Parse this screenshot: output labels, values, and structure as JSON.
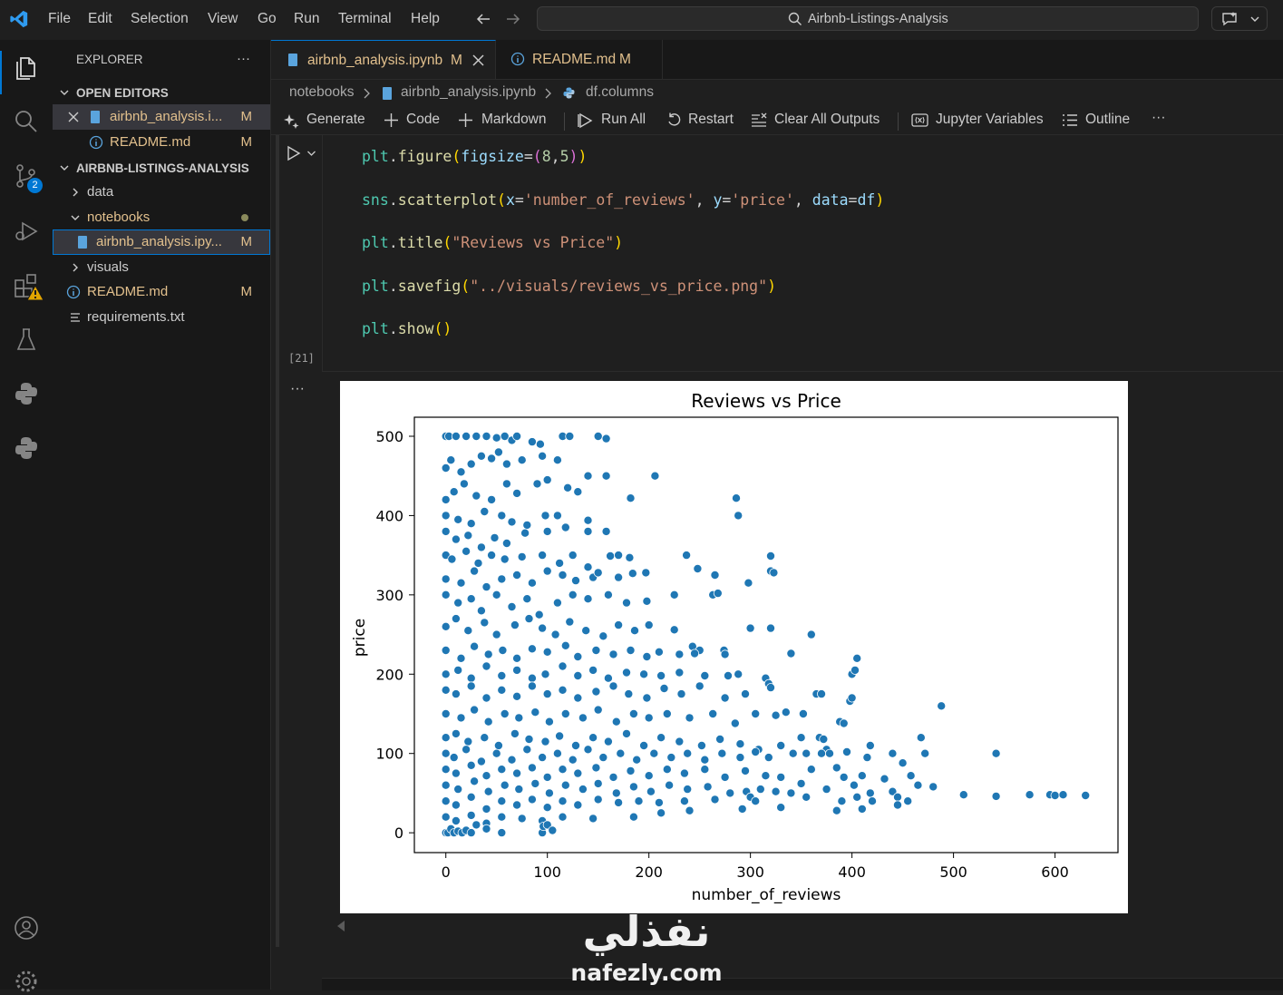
{
  "menu": [
    "File",
    "Edit",
    "Selection",
    "View",
    "Go",
    "Run",
    "Terminal",
    "Help"
  ],
  "command_center": {
    "label": "Airbnb-Listings-Analysis"
  },
  "activity": {
    "scm_badge": "2"
  },
  "sidebar": {
    "title": "EXPLORER",
    "more": "···",
    "open_editors_title": "OPEN EDITORS",
    "open_editors": [
      {
        "label": "airbnb_analysis.i...",
        "badge": "M"
      },
      {
        "label": "README.md",
        "badge": "M"
      }
    ],
    "project_title": "AIRBNB-LISTINGS-ANALYSIS",
    "tree": [
      {
        "label": "data",
        "badge": ""
      },
      {
        "label": "notebooks",
        "badge": ""
      },
      {
        "label": "airbnb_analysis.ipy...",
        "badge": "M"
      },
      {
        "label": "visuals",
        "badge": ""
      },
      {
        "label": "README.md",
        "badge": "M"
      },
      {
        "label": "requirements.txt",
        "badge": ""
      }
    ]
  },
  "tabs": [
    {
      "label": "airbnb_analysis.ipynb",
      "badge": "M"
    },
    {
      "label": "README.md",
      "badge": "M"
    }
  ],
  "breadcrumb": [
    "notebooks",
    "airbnb_analysis.ipynb",
    "df.columns"
  ],
  "toolbar": {
    "generate": "Generate",
    "code": "Code",
    "markdown": "Markdown",
    "run_all": "Run All",
    "restart": "Restart",
    "clear_outputs": "Clear All Outputs",
    "variables": "Jupyter Variables",
    "outline": "Outline",
    "more": "···"
  },
  "cell": {
    "exec_count": "[21]",
    "output_more": "···",
    "code_lines": [
      "plt.figure(figsize=(8,5))",
      "sns.scatterplot(x='number_of_reviews', y='price', data=df)",
      "plt.title(\"Reviews vs Price\")",
      "plt.savefig(\"../visuals/reviews_vs_price.png\")",
      "plt.show()"
    ]
  },
  "watermark": {
    "arabic": "نفذلي",
    "latin": "nafezly.com"
  },
  "chart_data": {
    "type": "scatter",
    "title": "Reviews vs Price",
    "xlabel": "number_of_reviews",
    "ylabel": "price",
    "xlim": [
      -31,
      662
    ],
    "ylim": [
      -25,
      524
    ],
    "xticks": [
      0,
      100,
      200,
      300,
      400,
      500,
      600
    ],
    "yticks": [
      0,
      100,
      200,
      300,
      400,
      500
    ],
    "marker_color": "#1f77b4",
    "points": [
      [
        0,
        500
      ],
      [
        3,
        500
      ],
      [
        10,
        500
      ],
      [
        20,
        500
      ],
      [
        30,
        500
      ],
      [
        40,
        500
      ],
      [
        50,
        498
      ],
      [
        58,
        500
      ],
      [
        65,
        495
      ],
      [
        70,
        500
      ],
      [
        85,
        493
      ],
      [
        93,
        490
      ],
      [
        115,
        500
      ],
      [
        122,
        500
      ],
      [
        150,
        500
      ],
      [
        158,
        497
      ],
      [
        0,
        460
      ],
      [
        5,
        470
      ],
      [
        15,
        455
      ],
      [
        25,
        465
      ],
      [
        35,
        475
      ],
      [
        45,
        472
      ],
      [
        52,
        480
      ],
      [
        60,
        465
      ],
      [
        75,
        470
      ],
      [
        95,
        475
      ],
      [
        110,
        470
      ],
      [
        140,
        450
      ],
      [
        158,
        450
      ],
      [
        206,
        450
      ],
      [
        0,
        420
      ],
      [
        8,
        430
      ],
      [
        18,
        440
      ],
      [
        30,
        425
      ],
      [
        45,
        420
      ],
      [
        60,
        440
      ],
      [
        70,
        428
      ],
      [
        90,
        440
      ],
      [
        100,
        445
      ],
      [
        120,
        435
      ],
      [
        130,
        430
      ],
      [
        182,
        422
      ],
      [
        286,
        422
      ],
      [
        0,
        400
      ],
      [
        12,
        395
      ],
      [
        25,
        390
      ],
      [
        38,
        405
      ],
      [
        55,
        400
      ],
      [
        65,
        392
      ],
      [
        80,
        388
      ],
      [
        98,
        400
      ],
      [
        110,
        400
      ],
      [
        140,
        394
      ],
      [
        288,
        400
      ],
      [
        0,
        380
      ],
      [
        10,
        370
      ],
      [
        22,
        375
      ],
      [
        35,
        360
      ],
      [
        48,
        372
      ],
      [
        60,
        365
      ],
      [
        78,
        378
      ],
      [
        100,
        380
      ],
      [
        118,
        385
      ],
      [
        140,
        380
      ],
      [
        158,
        380
      ],
      [
        0,
        350
      ],
      [
        6,
        345
      ],
      [
        20,
        355
      ],
      [
        32,
        340
      ],
      [
        45,
        350
      ],
      [
        58,
        345
      ],
      [
        75,
        348
      ],
      [
        95,
        350
      ],
      [
        112,
        340
      ],
      [
        125,
        350
      ],
      [
        140,
        335
      ],
      [
        162,
        349
      ],
      [
        170,
        350
      ],
      [
        181,
        347
      ],
      [
        237,
        350
      ],
      [
        320,
        349
      ],
      [
        0,
        320
      ],
      [
        15,
        315
      ],
      [
        28,
        330
      ],
      [
        40,
        310
      ],
      [
        55,
        320
      ],
      [
        70,
        325
      ],
      [
        85,
        315
      ],
      [
        100,
        330
      ],
      [
        115,
        325
      ],
      [
        128,
        318
      ],
      [
        145,
        322
      ],
      [
        150,
        328
      ],
      [
        170,
        322
      ],
      [
        184,
        327
      ],
      [
        197,
        328
      ],
      [
        248,
        333
      ],
      [
        265,
        325
      ],
      [
        320,
        330
      ],
      [
        323,
        328
      ],
      [
        298,
        315
      ],
      [
        0,
        300
      ],
      [
        12,
        290
      ],
      [
        25,
        295
      ],
      [
        35,
        280
      ],
      [
        50,
        300
      ],
      [
        65,
        285
      ],
      [
        80,
        295
      ],
      [
        92,
        275
      ],
      [
        110,
        290
      ],
      [
        125,
        300
      ],
      [
        140,
        295
      ],
      [
        160,
        300
      ],
      [
        178,
        290
      ],
      [
        198,
        292
      ],
      [
        225,
        300
      ],
      [
        263,
        300
      ],
      [
        268,
        302
      ],
      [
        0,
        260
      ],
      [
        10,
        270
      ],
      [
        22,
        255
      ],
      [
        38,
        265
      ],
      [
        50,
        250
      ],
      [
        68,
        262
      ],
      [
        82,
        270
      ],
      [
        95,
        258
      ],
      [
        108,
        250
      ],
      [
        122,
        266
      ],
      [
        138,
        255
      ],
      [
        155,
        248
      ],
      [
        170,
        262
      ],
      [
        186,
        255
      ],
      [
        200,
        262
      ],
      [
        225,
        256
      ],
      [
        243,
        235
      ],
      [
        250,
        230
      ],
      [
        274,
        230
      ],
      [
        300,
        258
      ],
      [
        320,
        258
      ],
      [
        360,
        250
      ],
      [
        0,
        230
      ],
      [
        15,
        220
      ],
      [
        28,
        235
      ],
      [
        42,
        225
      ],
      [
        56,
        230
      ],
      [
        70,
        220
      ],
      [
        85,
        232
      ],
      [
        100,
        228
      ],
      [
        118,
        236
      ],
      [
        130,
        222
      ],
      [
        148,
        230
      ],
      [
        165,
        225
      ],
      [
        182,
        230
      ],
      [
        198,
        222
      ],
      [
        210,
        228
      ],
      [
        230,
        225
      ],
      [
        245,
        226
      ],
      [
        275,
        225
      ],
      [
        340,
        226
      ],
      [
        405,
        220
      ],
      [
        0,
        200
      ],
      [
        12,
        205
      ],
      [
        25,
        195
      ],
      [
        40,
        210
      ],
      [
        55,
        198
      ],
      [
        70,
        205
      ],
      [
        85,
        195
      ],
      [
        98,
        200
      ],
      [
        115,
        210
      ],
      [
        130,
        198
      ],
      [
        145,
        205
      ],
      [
        160,
        195
      ],
      [
        178,
        202
      ],
      [
        195,
        200
      ],
      [
        212,
        198
      ],
      [
        230,
        202
      ],
      [
        255,
        198
      ],
      [
        278,
        198
      ],
      [
        288,
        200
      ],
      [
        315,
        195
      ],
      [
        400,
        200
      ],
      [
        403,
        205
      ],
      [
        0,
        180
      ],
      [
        10,
        175
      ],
      [
        25,
        185
      ],
      [
        40,
        170
      ],
      [
        55,
        180
      ],
      [
        70,
        172
      ],
      [
        85,
        185
      ],
      [
        100,
        175
      ],
      [
        115,
        180
      ],
      [
        130,
        170
      ],
      [
        148,
        178
      ],
      [
        165,
        185
      ],
      [
        180,
        175
      ],
      [
        198,
        170
      ],
      [
        215,
        182
      ],
      [
        232,
        175
      ],
      [
        250,
        185
      ],
      [
        275,
        170
      ],
      [
        295,
        175
      ],
      [
        318,
        188
      ],
      [
        320,
        183
      ],
      [
        365,
        175
      ],
      [
        370,
        175
      ],
      [
        398,
        166
      ],
      [
        400,
        170
      ],
      [
        488,
        160
      ],
      [
        0,
        150
      ],
      [
        15,
        145
      ],
      [
        28,
        155
      ],
      [
        42,
        140
      ],
      [
        58,
        150
      ],
      [
        72,
        145
      ],
      [
        88,
        152
      ],
      [
        102,
        140
      ],
      [
        118,
        150
      ],
      [
        135,
        145
      ],
      [
        150,
        155
      ],
      [
        168,
        140
      ],
      [
        185,
        150
      ],
      [
        200,
        145
      ],
      [
        218,
        150
      ],
      [
        240,
        145
      ],
      [
        263,
        150
      ],
      [
        285,
        138
      ],
      [
        305,
        150
      ],
      [
        325,
        148
      ],
      [
        335,
        152
      ],
      [
        352,
        150
      ],
      [
        388,
        140
      ],
      [
        392,
        138
      ],
      [
        0,
        120
      ],
      [
        10,
        125
      ],
      [
        22,
        115
      ],
      [
        38,
        120
      ],
      [
        52,
        110
      ],
      [
        68,
        125
      ],
      [
        82,
        118
      ],
      [
        98,
        115
      ],
      [
        112,
        122
      ],
      [
        128,
        110
      ],
      [
        145,
        120
      ],
      [
        160,
        115
      ],
      [
        178,
        125
      ],
      [
        195,
        110
      ],
      [
        212,
        120
      ],
      [
        230,
        115
      ],
      [
        252,
        110
      ],
      [
        270,
        118
      ],
      [
        290,
        112
      ],
      [
        308,
        105
      ],
      [
        330,
        110
      ],
      [
        350,
        120
      ],
      [
        368,
        120
      ],
      [
        372,
        118
      ],
      [
        375,
        105
      ],
      [
        418,
        110
      ],
      [
        468,
        120
      ],
      [
        0,
        100
      ],
      [
        8,
        95
      ],
      [
        20,
        105
      ],
      [
        35,
        90
      ],
      [
        50,
        100
      ],
      [
        65,
        92
      ],
      [
        80,
        105
      ],
      [
        95,
        95
      ],
      [
        110,
        100
      ],
      [
        125,
        92
      ],
      [
        140,
        105
      ],
      [
        155,
        95
      ],
      [
        172,
        100
      ],
      [
        188,
        92
      ],
      [
        205,
        100
      ],
      [
        222,
        95
      ],
      [
        238,
        100
      ],
      [
        255,
        92
      ],
      [
        272,
        100
      ],
      [
        290,
        95
      ],
      [
        305,
        102
      ],
      [
        318,
        95
      ],
      [
        342,
        100
      ],
      [
        355,
        100
      ],
      [
        370,
        100
      ],
      [
        378,
        100
      ],
      [
        395,
        102
      ],
      [
        415,
        95
      ],
      [
        440,
        100
      ],
      [
        472,
        100
      ],
      [
        542,
        100
      ],
      [
        0,
        80
      ],
      [
        10,
        75
      ],
      [
        25,
        85
      ],
      [
        40,
        72
      ],
      [
        55,
        80
      ],
      [
        70,
        75
      ],
      [
        85,
        82
      ],
      [
        100,
        70
      ],
      [
        115,
        80
      ],
      [
        130,
        75
      ],
      [
        148,
        82
      ],
      [
        165,
        70
      ],
      [
        182,
        78
      ],
      [
        200,
        72
      ],
      [
        218,
        80
      ],
      [
        235,
        75
      ],
      [
        255,
        80
      ],
      [
        275,
        70
      ],
      [
        295,
        78
      ],
      [
        315,
        72
      ],
      [
        330,
        70
      ],
      [
        360,
        80
      ],
      [
        385,
        82
      ],
      [
        392,
        70
      ],
      [
        410,
        72
      ],
      [
        432,
        68
      ],
      [
        450,
        88
      ],
      [
        458,
        72
      ],
      [
        0,
        60
      ],
      [
        12,
        55
      ],
      [
        28,
        65
      ],
      [
        42,
        52
      ],
      [
        58,
        60
      ],
      [
        72,
        55
      ],
      [
        88,
        62
      ],
      [
        102,
        50
      ],
      [
        118,
        60
      ],
      [
        135,
        55
      ],
      [
        150,
        62
      ],
      [
        168,
        50
      ],
      [
        185,
        58
      ],
      [
        202,
        52
      ],
      [
        220,
        60
      ],
      [
        238,
        55
      ],
      [
        258,
        58
      ],
      [
        280,
        50
      ],
      [
        296,
        52
      ],
      [
        310,
        55
      ],
      [
        325,
        52
      ],
      [
        340,
        50
      ],
      [
        350,
        62
      ],
      [
        375,
        55
      ],
      [
        402,
        60
      ],
      [
        418,
        50
      ],
      [
        440,
        52
      ],
      [
        465,
        60
      ],
      [
        480,
        58
      ],
      [
        0,
        40
      ],
      [
        10,
        35
      ],
      [
        25,
        45
      ],
      [
        40,
        30
      ],
      [
        55,
        40
      ],
      [
        70,
        35
      ],
      [
        85,
        42
      ],
      [
        100,
        32
      ],
      [
        115,
        40
      ],
      [
        130,
        35
      ],
      [
        150,
        42
      ],
      [
        170,
        38
      ],
      [
        190,
        40
      ],
      [
        210,
        38
      ],
      [
        235,
        40
      ],
      [
        265,
        42
      ],
      [
        300,
        45
      ],
      [
        305,
        40
      ],
      [
        355,
        45
      ],
      [
        390,
        40
      ],
      [
        405,
        45
      ],
      [
        420,
        40
      ],
      [
        445,
        45
      ],
      [
        455,
        40
      ],
      [
        510,
        48
      ],
      [
        542,
        46
      ],
      [
        575,
        48
      ],
      [
        595,
        48
      ],
      [
        600,
        47
      ],
      [
        608,
        48
      ],
      [
        630,
        47
      ],
      [
        0,
        20
      ],
      [
        10,
        15
      ],
      [
        25,
        22
      ],
      [
        40,
        12
      ],
      [
        55,
        20
      ],
      [
        75,
        18
      ],
      [
        95,
        15
      ],
      [
        115,
        20
      ],
      [
        145,
        18
      ],
      [
        185,
        20
      ],
      [
        212,
        25
      ],
      [
        240,
        28
      ],
      [
        292,
        30
      ],
      [
        330,
        32
      ],
      [
        385,
        28
      ],
      [
        410,
        30
      ],
      [
        445,
        35
      ],
      [
        0,
        0
      ],
      [
        2,
        0
      ],
      [
        5,
        5
      ],
      [
        8,
        0
      ],
      [
        12,
        2
      ],
      [
        16,
        0
      ],
      [
        20,
        3
      ],
      [
        25,
        0
      ],
      [
        30,
        10
      ],
      [
        40,
        5
      ],
      [
        55,
        0
      ],
      [
        95,
        0
      ],
      [
        96,
        8
      ],
      [
        100,
        10
      ],
      [
        105,
        3
      ]
    ]
  }
}
